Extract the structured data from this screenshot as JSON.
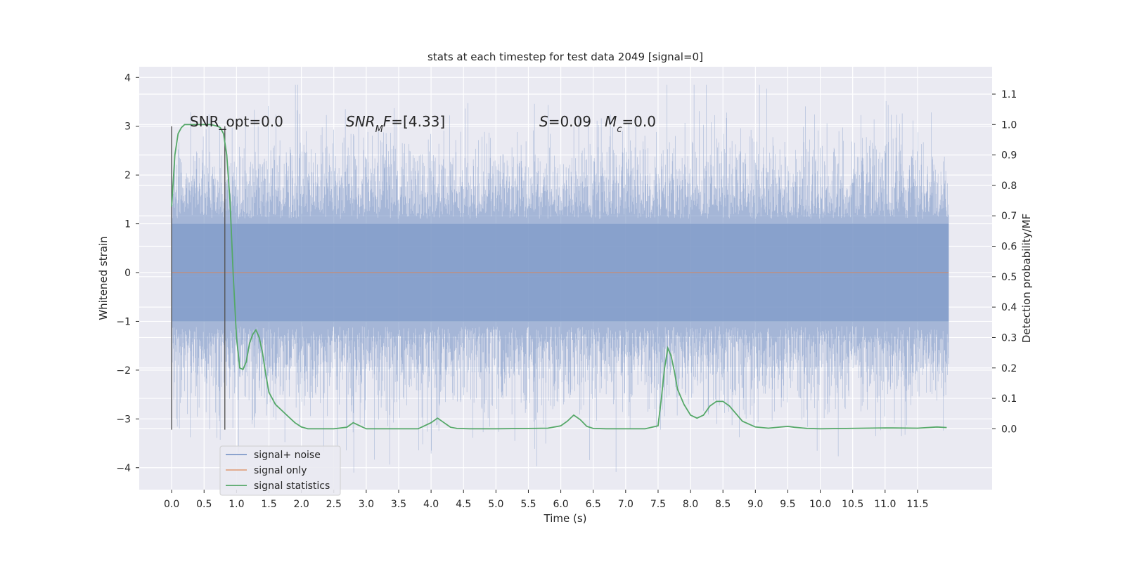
{
  "chart_data": {
    "type": "line",
    "title": "stats at each timestep for test data 2049 [signal=0]",
    "xlabel": "Time (s)",
    "ylabel": "Whitened strain",
    "y2label": "Detection probability/MF",
    "xlim": [
      -0.5,
      12.65
    ],
    "ylim": [
      -4.45,
      4.22
    ],
    "y2lim": [
      -0.2,
      1.19
    ],
    "x_ticks": [
      "0.0",
      "0.5",
      "1.0",
      "1.5",
      "2.0",
      "2.5",
      "3.0",
      "3.5",
      "4.0",
      "4.5",
      "5.0",
      "5.5",
      "6.0",
      "6.5",
      "7.0",
      "7.5",
      "8.0",
      "8.5",
      "9.0",
      "9.5",
      "10.0",
      "10.5",
      "11.0",
      "11.5"
    ],
    "y_ticks": [
      4,
      3,
      2,
      1,
      0,
      -1,
      -2,
      -3,
      -4
    ],
    "y_tick_labels": [
      "4",
      "3",
      "2",
      "1",
      "0",
      "−1",
      "−2",
      "−3",
      "−4"
    ],
    "y2_ticks": [
      1.1,
      1.0,
      0.9,
      0.8,
      0.7,
      0.6,
      0.5,
      0.4,
      0.3,
      0.2,
      0.1,
      0.0
    ],
    "y2_tick_labels": [
      "1.1",
      "1.0",
      "0.9",
      "0.8",
      "0.7",
      "0.6",
      "0.5",
      "0.4",
      "0.3",
      "0.2",
      "0.1",
      "0.0"
    ],
    "grid": true,
    "legend_position": "lower-left",
    "colors": {
      "noise": "#7f99c8",
      "signal_only": "#dd8452",
      "statistics": "#55a868",
      "markers": "#555555",
      "background": "#eaeaf2",
      "grid": "#ffffff"
    },
    "annotations": [
      {
        "text": "SNR_opt=0.0"
      },
      {
        "text": "SNR_MF=[4.33]"
      },
      {
        "text": "S=0.09"
      },
      {
        "text": "M_c=0.0"
      }
    ],
    "vertical_markers": [
      {
        "x": 0.0,
        "ymin": -3.22,
        "ymax": 3.0
      },
      {
        "x": 0.82,
        "ymin": -3.22,
        "ymax": 3.0
      }
    ],
    "series": [
      {
        "name": "signal+ noise",
        "axis": "left",
        "description_stats": {
          "approx_range": [
            -4.1,
            3.85
          ],
          "points_range_x": [
            0.0,
            11.98
          ]
        },
        "x_range": [
          0.0,
          11.98
        ]
      },
      {
        "name": "signal only",
        "axis": "left",
        "x": [
          0.0,
          11.98
        ],
        "y": [
          0.0,
          0.0
        ]
      },
      {
        "name": "signal statistics",
        "axis": "right",
        "x": [
          0.0,
          0.05,
          0.1,
          0.15,
          0.2,
          0.3,
          0.4,
          0.5,
          0.6,
          0.7,
          0.75,
          0.8,
          0.85,
          0.9,
          0.95,
          1.0,
          1.05,
          1.1,
          1.15,
          1.2,
          1.25,
          1.3,
          1.35,
          1.4,
          1.45,
          1.5,
          1.6,
          1.7,
          1.8,
          1.9,
          2.0,
          2.1,
          2.3,
          2.5,
          2.7,
          2.8,
          2.9,
          3.0,
          3.2,
          3.5,
          3.8,
          4.0,
          4.1,
          4.2,
          4.3,
          4.4,
          4.6,
          5.0,
          5.5,
          5.8,
          6.0,
          6.1,
          6.2,
          6.3,
          6.4,
          6.5,
          6.7,
          7.0,
          7.3,
          7.5,
          7.55,
          7.6,
          7.65,
          7.7,
          7.75,
          7.8,
          7.9,
          8.0,
          8.1,
          8.2,
          8.3,
          8.4,
          8.5,
          8.6,
          8.7,
          8.8,
          9.0,
          9.2,
          9.5,
          9.6,
          9.8,
          10.0,
          11.0,
          11.5,
          11.8,
          11.95
        ],
        "y": [
          0.73,
          0.9,
          0.97,
          0.99,
          1.0,
          1.0,
          1.0,
          1.0,
          1.0,
          0.995,
          0.99,
          0.97,
          0.9,
          0.75,
          0.5,
          0.3,
          0.2,
          0.195,
          0.22,
          0.28,
          0.31,
          0.325,
          0.3,
          0.25,
          0.18,
          0.12,
          0.08,
          0.06,
          0.04,
          0.02,
          0.006,
          0.0,
          0.0,
          0.0,
          0.005,
          0.02,
          0.01,
          0.0,
          0.0,
          0.0,
          0.0,
          0.02,
          0.035,
          0.02,
          0.005,
          0.001,
          0.0,
          0.0,
          0.001,
          0.002,
          0.01,
          0.025,
          0.045,
          0.03,
          0.008,
          0.001,
          0.0,
          0.0,
          0.0,
          0.01,
          0.1,
          0.2,
          0.265,
          0.24,
          0.19,
          0.13,
          0.08,
          0.045,
          0.035,
          0.045,
          0.075,
          0.09,
          0.09,
          0.075,
          0.05,
          0.025,
          0.006,
          0.002,
          0.008,
          0.005,
          0.001,
          0.0,
          0.003,
          0.002,
          0.006,
          0.004
        ]
      }
    ]
  }
}
